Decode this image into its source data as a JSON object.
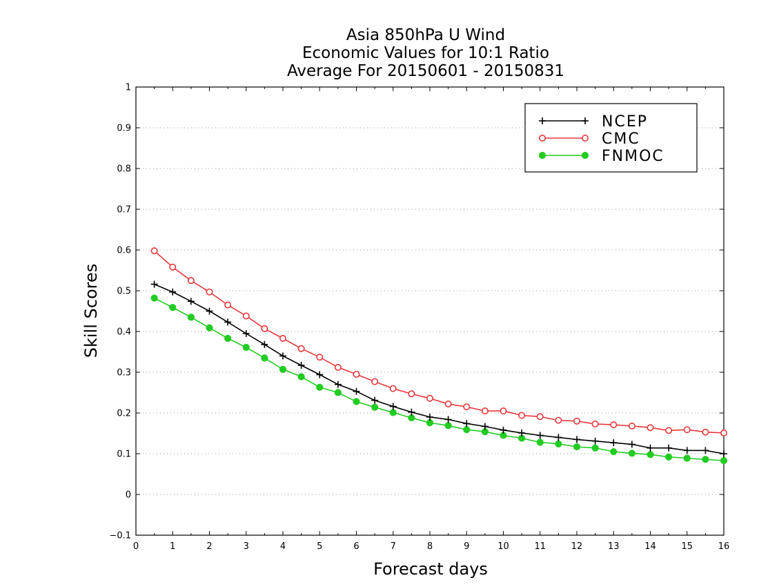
{
  "chart_data": {
    "type": "line",
    "title": [
      "Asia 850hPa U Wind",
      "Economic Values for 10:1 Ratio",
      "Average For 20150601 - 20150831"
    ],
    "xlabel": "Forecast days",
    "ylabel": "Skill Scores",
    "xlim": [
      0,
      16
    ],
    "ylim": [
      -0.1,
      1
    ],
    "xticks": [
      "0",
      "1",
      "2",
      "3",
      "4",
      "5",
      "6",
      "7",
      "8",
      "9",
      "10",
      "11",
      "12",
      "13",
      "14",
      "15",
      "16"
    ],
    "yticks": [
      "−0.1",
      "0",
      "0.1",
      "0.2",
      "0.3",
      "0.4",
      "0.5",
      "0.6",
      "0.7",
      "0.8",
      "0.9",
      "1"
    ],
    "grid": "horizontal-dotted",
    "legend_position": "top-right",
    "x": [
      0.5,
      1,
      1.5,
      2,
      2.5,
      3,
      3.5,
      4,
      4.5,
      5,
      5.5,
      6,
      6.5,
      7,
      7.5,
      8,
      8.5,
      9,
      9.5,
      10,
      10.5,
      11,
      11.5,
      12,
      12.5,
      13,
      13.5,
      14,
      14.5,
      15,
      15.5,
      16
    ],
    "series": [
      {
        "name": "NCEP",
        "color": "#000000",
        "marker": "plus",
        "values": [
          0.516,
          0.497,
          0.474,
          0.45,
          0.423,
          0.395,
          0.368,
          0.34,
          0.317,
          0.294,
          0.27,
          0.253,
          0.231,
          0.216,
          0.202,
          0.19,
          0.184,
          0.174,
          0.167,
          0.158,
          0.151,
          0.145,
          0.14,
          0.135,
          0.131,
          0.127,
          0.123,
          0.114,
          0.114,
          0.108,
          0.108,
          0.1
        ]
      },
      {
        "name": "CMC",
        "color": "#e8373a",
        "marker": "open-circle",
        "values": [
          0.598,
          0.558,
          0.525,
          0.497,
          0.465,
          0.438,
          0.407,
          0.383,
          0.358,
          0.337,
          0.312,
          0.295,
          0.277,
          0.26,
          0.247,
          0.236,
          0.222,
          0.215,
          0.205,
          0.205,
          0.194,
          0.191,
          0.182,
          0.18,
          0.173,
          0.171,
          0.168,
          0.164,
          0.157,
          0.159,
          0.153,
          0.151
        ]
      },
      {
        "name": "FNMOC",
        "color": "#22cc22",
        "marker": "filled-circle",
        "values": [
          0.482,
          0.459,
          0.435,
          0.409,
          0.383,
          0.361,
          0.335,
          0.307,
          0.289,
          0.263,
          0.25,
          0.228,
          0.214,
          0.201,
          0.188,
          0.176,
          0.169,
          0.159,
          0.154,
          0.145,
          0.138,
          0.128,
          0.124,
          0.117,
          0.114,
          0.105,
          0.101,
          0.098,
          0.092,
          0.089,
          0.086,
          0.083
        ]
      }
    ]
  }
}
